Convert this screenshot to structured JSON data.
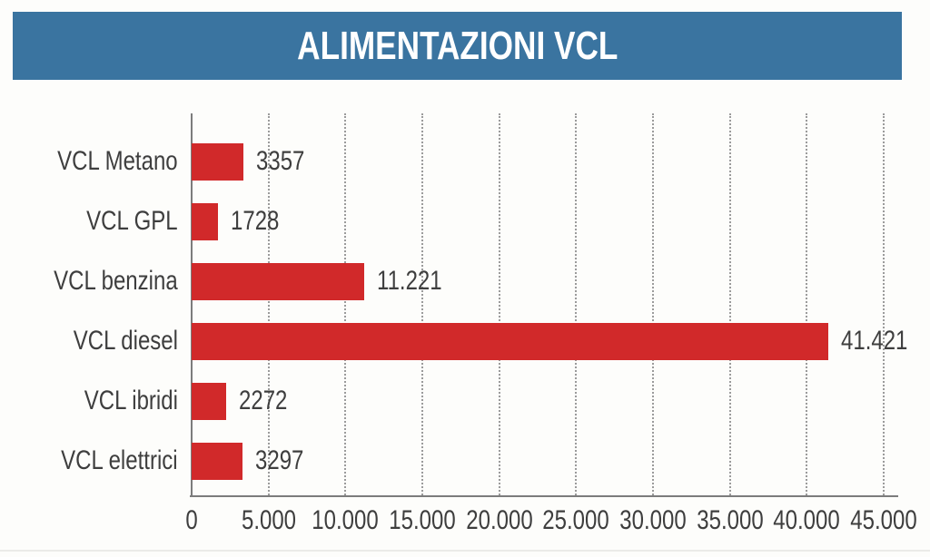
{
  "chart_data": {
    "type": "bar",
    "orientation": "horizontal",
    "title": "ALIMENTAZIONI VCL",
    "categories": [
      "VCL Metano",
      "VCL GPL",
      "VCL benzina",
      "VCL diesel",
      "VCL ibridi",
      "VCL elettrici"
    ],
    "values": [
      3357,
      1728,
      11221,
      41421,
      2272,
      3297
    ],
    "value_labels": [
      "3357",
      "1728",
      "11.221",
      "41.421",
      "2272",
      "3297"
    ],
    "xlabel": "",
    "ylabel": "",
    "xlim": [
      0,
      45000
    ],
    "x_tick_interval": 5000,
    "x_tick_labels": [
      "0",
      "5.000",
      "10.000",
      "15.000",
      "20.000",
      "25.000",
      "30.000",
      "35.000",
      "40.000",
      "45.000"
    ],
    "grid": "vertical-dotted",
    "legend": "none",
    "colors": {
      "bar": "#d1292a",
      "title_bg": "#3a74a0",
      "title_text": "#ffffff",
      "axis_line": "#7c7c7c",
      "gridline": "#9b9b9b",
      "label_text": "#3e3e3e"
    }
  }
}
